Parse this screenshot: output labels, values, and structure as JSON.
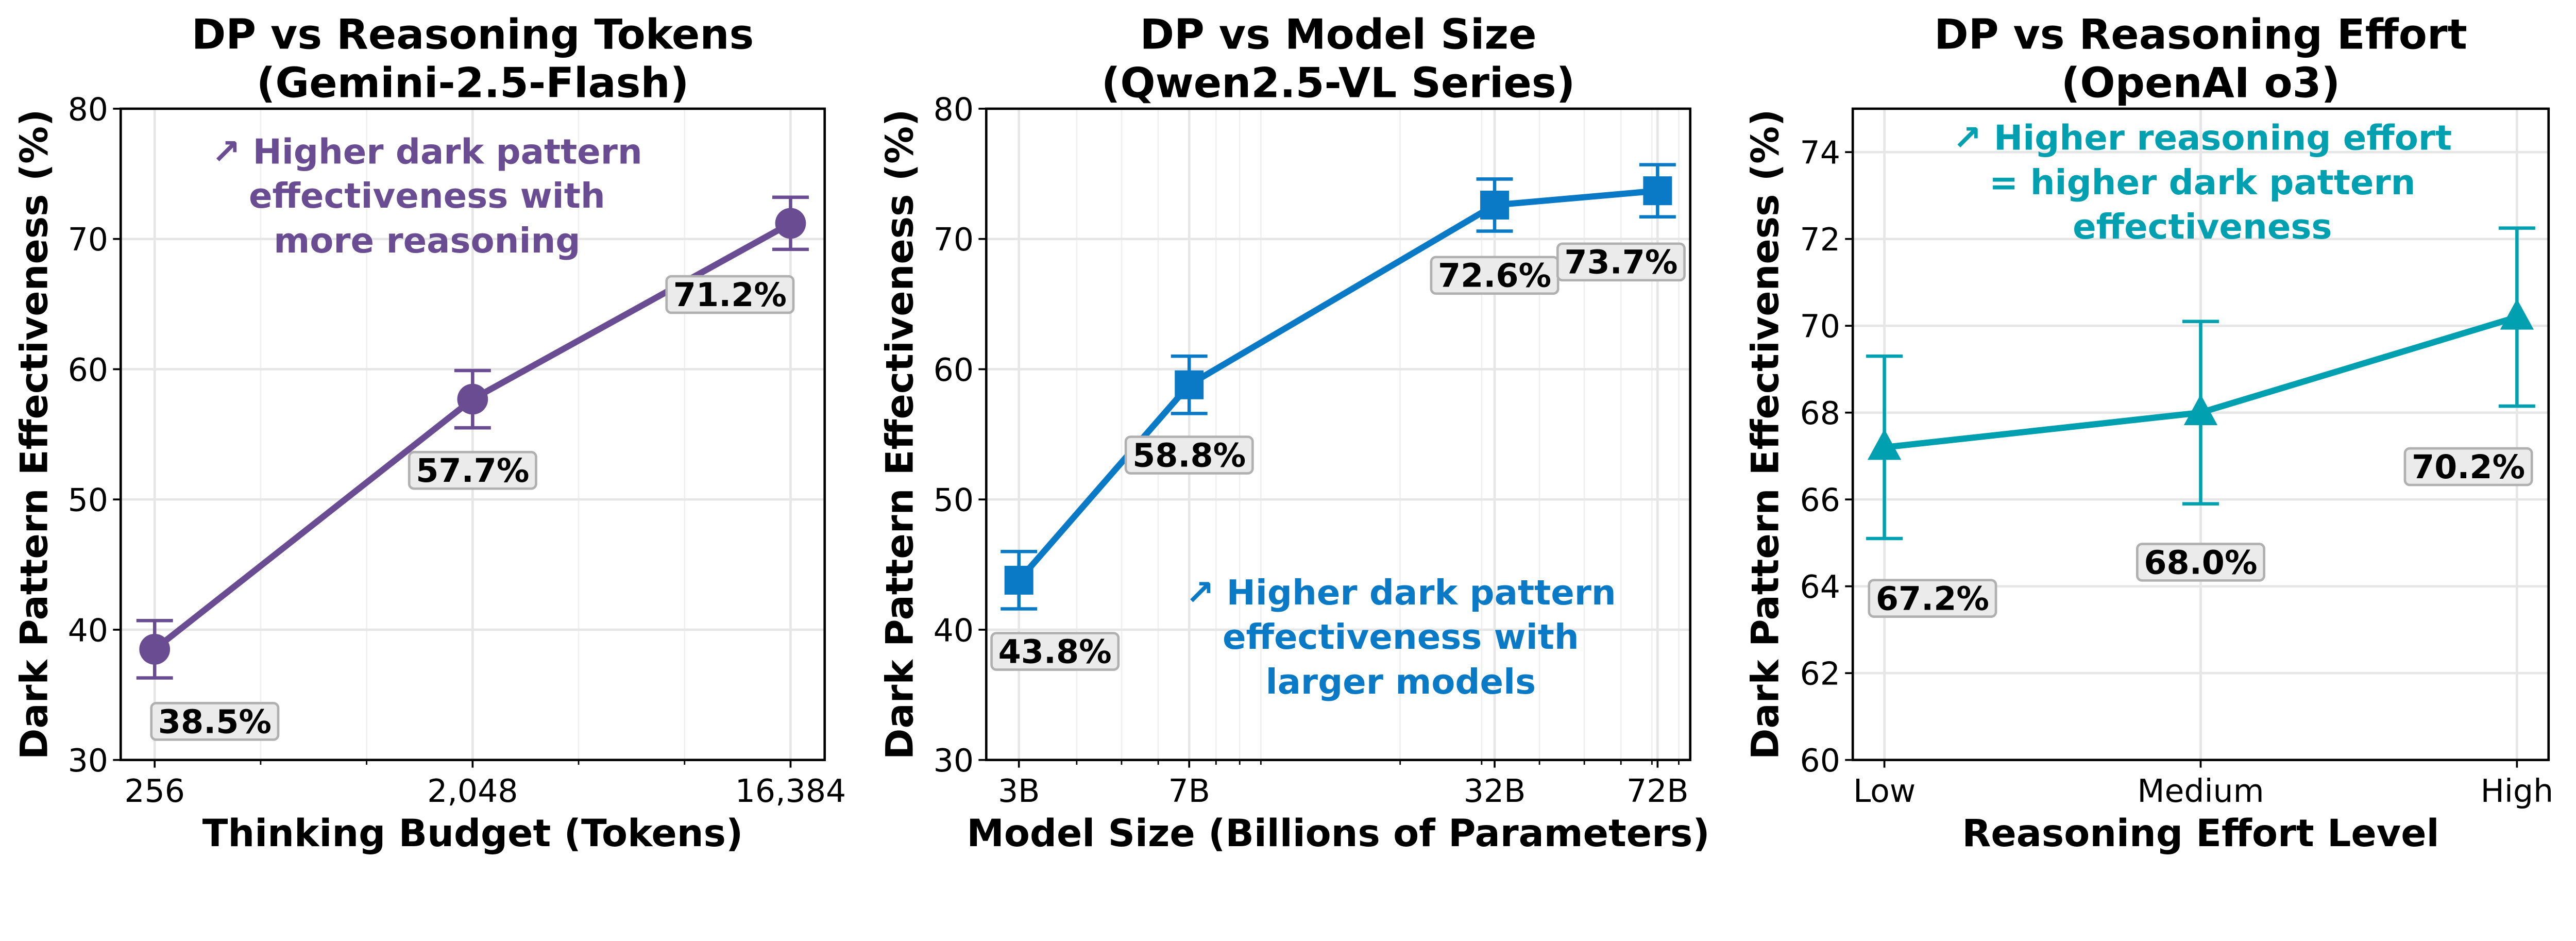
{
  "chart_data": [
    {
      "type": "line",
      "title": [
        "DP vs Reasoning Tokens",
        "(Gemini-2.5-Flash)"
      ],
      "xlabel": "Thinking Budget (Tokens)",
      "ylabel": "Dark Pattern Effectiveness (%)",
      "xscale": "log2",
      "xlim": [
        205,
        20480
      ],
      "ylim": [
        30,
        80
      ],
      "yticks": [
        30,
        40,
        50,
        60,
        70,
        80
      ],
      "x": [
        256,
        2048,
        16384
      ],
      "xtick_labels": [
        "256",
        "2,048",
        "16,384"
      ],
      "values": [
        38.5,
        57.7,
        71.2
      ],
      "errors": [
        2.2,
        2.2,
        2.0
      ],
      "data_labels": [
        "38.5%",
        "57.7%",
        "71.2%"
      ],
      "marker": "circle",
      "color": "#6A4C93",
      "grid": true,
      "annotation": [
        "↗ Higher dark pattern",
        "effectiveness with",
        "more reasoning"
      ]
    },
    {
      "type": "line",
      "title": [
        "DP vs Model Size",
        "(Qwen2.5-VL Series)"
      ],
      "xlabel": "Model Size (Billions of Parameters)",
      "ylabel": "Dark Pattern Effectiveness (%)",
      "xscale": "log10",
      "xlim": [
        2.55,
        84.7
      ],
      "ylim": [
        30,
        80
      ],
      "yticks": [
        30,
        40,
        50,
        60,
        70,
        80
      ],
      "x": [
        3,
        7,
        32,
        72
      ],
      "xtick_labels": [
        "3B",
        "7B",
        "32B",
        "72B"
      ],
      "values": [
        43.8,
        58.8,
        72.6,
        73.7
      ],
      "errors": [
        2.2,
        2.2,
        2.0,
        2.0
      ],
      "data_labels": [
        "43.8%",
        "58.8%",
        "72.6%",
        "73.7%"
      ],
      "marker": "square",
      "color": "#0A7AC6",
      "grid": true,
      "annotation": [
        "↗ Higher dark pattern",
        "effectiveness with",
        "larger models"
      ]
    },
    {
      "type": "line",
      "title": [
        "DP vs Reasoning Effort",
        "(OpenAI o3)"
      ],
      "xlabel": "Reasoning Effort Level",
      "ylabel": "Dark Pattern Effectiveness (%)",
      "xscale": "category",
      "xlim": [
        -0.1,
        2.1
      ],
      "ylim": [
        60,
        75
      ],
      "yticks": [
        60,
        62,
        64,
        66,
        68,
        70,
        72,
        74
      ],
      "x": [
        0,
        1,
        2
      ],
      "xtick_labels": [
        "Low",
        "Medium",
        "High"
      ],
      "values": [
        67.2,
        68.0,
        70.2
      ],
      "errors": [
        2.1,
        2.1,
        2.05
      ],
      "data_labels": [
        "67.2%",
        "68.0%",
        "70.2%"
      ],
      "marker": "triangle",
      "color": "#00A0B0",
      "grid": true,
      "annotation": [
        "↗ Higher reasoning effort",
        "= higher dark pattern",
        "effectiveness"
      ]
    }
  ]
}
